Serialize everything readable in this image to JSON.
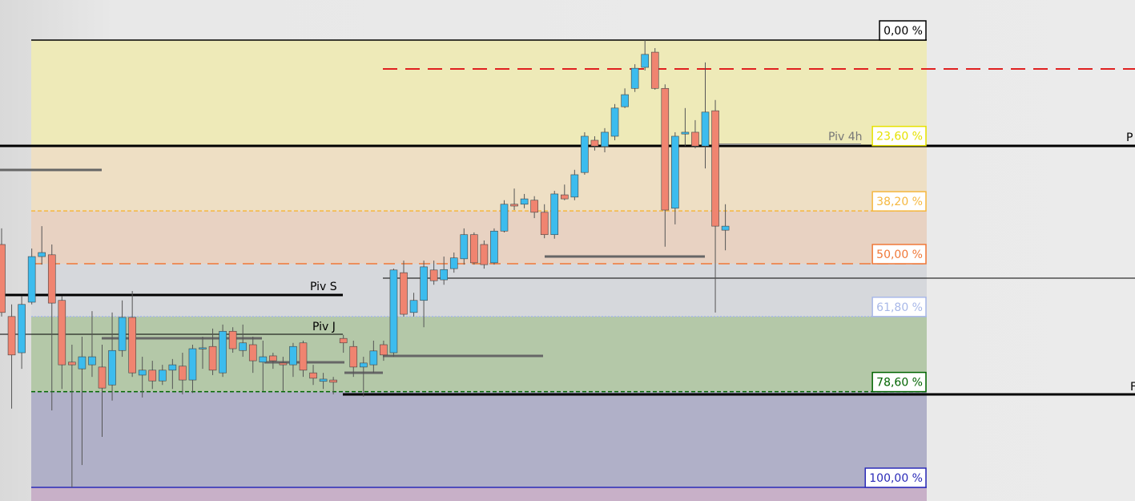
{
  "chart_data": {
    "type": "candlestick",
    "ylim": [
      100,
      0
    ],
    "yticks": [
      {
        "value": 0,
        "label": "0,00 %"
      },
      {
        "value": 23.6,
        "label": "23,60 %"
      },
      {
        "value": 38.2,
        "label": "38,20 %"
      },
      {
        "value": 50,
        "label": "50,00 %"
      },
      {
        "value": 61.8,
        "label": "61,80 %"
      },
      {
        "value": 78.6,
        "label": "78,60 %"
      },
      {
        "value": 100,
        "label": "100,00 %"
      }
    ],
    "level_colors": [
      "#000000",
      "#e6e200",
      "#f5b840",
      "#f07838",
      "#a8b8e8",
      "#006400",
      "#2a2ab8"
    ],
    "level_dash": [
      "none",
      "3 2",
      "5 3",
      "14 8",
      "2 2",
      "5 3",
      "none"
    ],
    "zone_colors": [
      "#eeeab8",
      "#eedfc4",
      "#e8d2c2",
      "#d6d8dc",
      "#b4c8a8",
      "#b0b0c8"
    ],
    "up_color": "#3cbcee",
    "down_color": "#f08470",
    "ohlc": [
      [
        45.7,
        42.1,
        61.8,
        60.9
      ],
      [
        61.8,
        59.1,
        82.4,
        70.4
      ],
      [
        69.9,
        57.3,
        73.5,
        59.1
      ],
      [
        58.6,
        46.6,
        59.1,
        48.4
      ],
      [
        48.4,
        41.6,
        50.2,
        47.5
      ],
      [
        48.0,
        45.7,
        82.8,
        58.8
      ],
      [
        58.2,
        57.3,
        78.0,
        72.6
      ],
      [
        72.0,
        68.1,
        100.0,
        72.6
      ],
      [
        73.5,
        66.3,
        95.0,
        70.8
      ],
      [
        72.6,
        60.6,
        75.3,
        70.8
      ],
      [
        73.1,
        68.1,
        88.7,
        77.8
      ],
      [
        77.1,
        60.9,
        80.6,
        69.4
      ],
      [
        69.4,
        58.2,
        70.8,
        62.0
      ],
      [
        62.0,
        56.1,
        75.3,
        74.4
      ],
      [
        74.9,
        70.8,
        79.9,
        73.8
      ],
      [
        73.8,
        71.7,
        78.0,
        76.2
      ],
      [
        76.2,
        72.6,
        77.1,
        73.8
      ],
      [
        73.8,
        71.3,
        78.0,
        72.6
      ],
      [
        72.9,
        69.9,
        79.2,
        76.0
      ],
      [
        76.0,
        68.1,
        78.9,
        69.0
      ],
      [
        69.0,
        66.3,
        73.5,
        68.8
      ],
      [
        68.5,
        64.5,
        74.9,
        73.8
      ],
      [
        74.4,
        63.6,
        75.3,
        65.1
      ],
      [
        65.1,
        64.2,
        69.9,
        69.0
      ],
      [
        69.4,
        63.6,
        70.8,
        67.7
      ],
      [
        68.1,
        66.3,
        74.4,
        71.7
      ],
      [
        72.0,
        67.2,
        78.5,
        70.8
      ],
      [
        70.6,
        69.9,
        73.5,
        71.7
      ],
      [
        72.2,
        70.8,
        78.5,
        72.6
      ],
      [
        72.6,
        67.7,
        75.3,
        68.5
      ],
      [
        67.7,
        67.2,
        75.3,
        73.8
      ],
      [
        74.4,
        72.6,
        77.1,
        75.6
      ],
      [
        76.3,
        74.4,
        78.0,
        75.8
      ],
      [
        76.0,
        75.3,
        79.2,
        76.5
      ],
      [
        66.7,
        65.9,
        69.9,
        67.7
      ],
      [
        68.5,
        67.2,
        75.3,
        73.1
      ],
      [
        73.1,
        70.8,
        79.7,
        72.2
      ],
      [
        72.6,
        67.2,
        74.4,
        69.5
      ],
      [
        68.1,
        67.2,
        71.7,
        70.4
      ],
      [
        69.9,
        51.1,
        70.8,
        51.4
      ],
      [
        52.0,
        49.3,
        61.8,
        61.3
      ],
      [
        60.9,
        56.5,
        61.8,
        58.2
      ],
      [
        58.2,
        49.3,
        64.2,
        50.7
      ],
      [
        51.4,
        49.3,
        54.7,
        53.8
      ],
      [
        53.6,
        48.4,
        54.7,
        51.3
      ],
      [
        51.1,
        47.5,
        52.0,
        48.7
      ],
      [
        48.9,
        42.1,
        50.2,
        43.5
      ],
      [
        43.5,
        43.0,
        50.2,
        49.8
      ],
      [
        45.7,
        44.8,
        51.1,
        50.2
      ],
      [
        49.8,
        42.1,
        50.2,
        42.7
      ],
      [
        42.7,
        35.8,
        43.0,
        36.7
      ],
      [
        36.7,
        33.2,
        38.0,
        37.1
      ],
      [
        36.7,
        34.4,
        37.6,
        35.5
      ],
      [
        35.8,
        34.9,
        39.8,
        38.5
      ],
      [
        38.5,
        36.7,
        44.3,
        43.5
      ],
      [
        43.5,
        33.7,
        44.4,
        34.4
      ],
      [
        34.6,
        32.3,
        35.8,
        35.5
      ],
      [
        35.1,
        29.0,
        35.8,
        30.1
      ],
      [
        29.6,
        20.6,
        30.1,
        21.5
      ],
      [
        22.4,
        21.5,
        24.7,
        23.7
      ],
      [
        23.8,
        19.7,
        25.1,
        20.6
      ],
      [
        21.5,
        14.3,
        22.4,
        15.2
      ],
      [
        14.9,
        10.8,
        15.2,
        12.2
      ],
      [
        10.8,
        5.4,
        11.6,
        6.3
      ],
      [
        6.1,
        0.0,
        6.8,
        3.2
      ],
      [
        2.7,
        1.8,
        11.1,
        10.8
      ],
      [
        10.8,
        9.9,
        46.2,
        38.0
      ],
      [
        37.6,
        20.6,
        41.2,
        21.5
      ],
      [
        21.0,
        15.2,
        23.7,
        20.6
      ],
      [
        20.6,
        17.9,
        24.2,
        23.7
      ],
      [
        23.7,
        5.0,
        28.7,
        16.1
      ],
      [
        15.8,
        13.4,
        60.9,
        41.6
      ],
      [
        42.5,
        36.7,
        47.0,
        41.6
      ]
    ]
  },
  "annotations": {
    "piv_s": "Piv S",
    "piv_j": "Piv J",
    "piv_4h": "Piv 4h",
    "edge_p": "P",
    "edge_f": "F"
  }
}
